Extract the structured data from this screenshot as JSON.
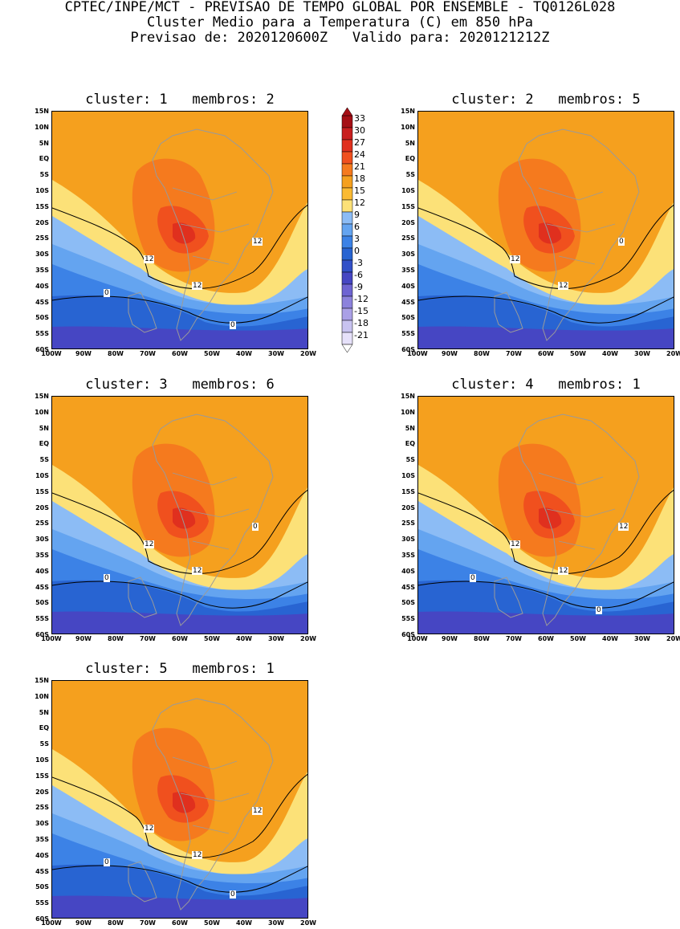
{
  "header": {
    "line1": "CPTEC/INPE/MCT - PREVISAO DE TEMPO GLOBAL POR ENSEMBLE - TQ0126L028",
    "line2": "Cluster Medio para a Temperatura (C) em 850 hPa",
    "line3": "Previsao de: 2020120600Z   Valido para: 2020121212Z"
  },
  "panels": [
    {
      "cluster": "1",
      "membros": "2",
      "title": "cluster: 1   membros: 2",
      "contour_labels": [
        "12",
        "12",
        "12",
        "0",
        "0"
      ]
    },
    {
      "cluster": "2",
      "membros": "5",
      "title": "cluster: 2   membros: 5",
      "contour_labels": [
        "12",
        "12",
        "0"
      ]
    },
    {
      "cluster": "3",
      "membros": "6",
      "title": "cluster: 3   membros: 6",
      "contour_labels": [
        "12",
        "12",
        "0",
        "0"
      ]
    },
    {
      "cluster": "4",
      "membros": "1",
      "title": "cluster: 4   membros: 1",
      "contour_labels": [
        "12",
        "12",
        "12",
        "0",
        "0"
      ]
    },
    {
      "cluster": "5",
      "membros": "1",
      "title": "cluster: 5   membros: 1",
      "contour_labels": [
        "12",
        "12",
        "12",
        "0",
        "0"
      ]
    }
  ],
  "axes": {
    "lat_labels": [
      "15N",
      "10N",
      "5N",
      "EQ",
      "5S",
      "10S",
      "15S",
      "20S",
      "25S",
      "30S",
      "35S",
      "40S",
      "45S",
      "50S",
      "55S",
      "60S"
    ],
    "lon_labels": [
      "100W",
      "90W",
      "80W",
      "70W",
      "60W",
      "50W",
      "40W",
      "30W",
      "20W"
    ]
  },
  "colorbar": {
    "labels": [
      "33",
      "30",
      "27",
      "24",
      "21",
      "18",
      "15",
      "12",
      "9",
      "6",
      "3",
      "0",
      "-3",
      "-6",
      "-9",
      "-12",
      "-15",
      "-18",
      "-21"
    ],
    "colors": [
      "#a50f15",
      "#c81e1e",
      "#e0301e",
      "#f0501e",
      "#f57a1e",
      "#f5a01e",
      "#faba32",
      "#fce178",
      "#8cbcf5",
      "#64a4f0",
      "#3c82e6",
      "#2864d2",
      "#3250c8",
      "#4646c3",
      "#6e64d2",
      "#8c82dc",
      "#aaa0e6",
      "#c8c3f0",
      "#e6e1fa"
    ]
  }
}
